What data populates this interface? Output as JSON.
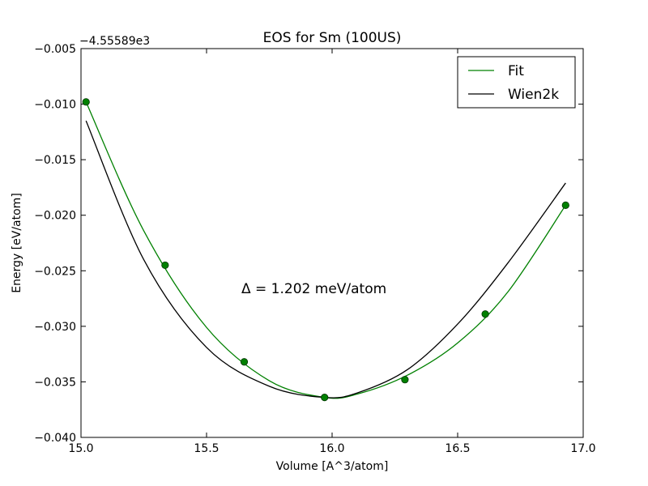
{
  "chart_data": {
    "type": "line",
    "title": "EOS for Sm (100US)",
    "xlabel": "Volume [A^3/atom]",
    "ylabel": "Energy [eV/atom]",
    "y_offset_label": "−4.55589e3",
    "annotation": "Δ = 1.202 meV/atom",
    "xlim": [
      15.0,
      17.0
    ],
    "ylim": [
      -0.04,
      -0.005
    ],
    "x_ticks": [
      15.0,
      15.5,
      16.0,
      16.5,
      17.0
    ],
    "x_tick_labels": [
      "15.0",
      "15.5",
      "16.0",
      "16.5",
      "17.0"
    ],
    "y_ticks": [
      -0.005,
      -0.01,
      -0.015,
      -0.02,
      -0.025,
      -0.03,
      -0.035,
      -0.04
    ],
    "y_tick_labels": [
      "−0.005",
      "−0.010",
      "−0.015",
      "−0.020",
      "−0.025",
      "−0.030",
      "−0.035",
      "−0.040"
    ],
    "legend_position": "top-right",
    "grid": false,
    "series": [
      {
        "name": "Fit",
        "color": "#008000",
        "x": [
          15.02,
          15.25,
          15.5,
          15.75,
          15.97,
          16.1,
          16.3,
          16.5,
          16.7,
          16.93
        ],
        "y": [
          -0.0098,
          -0.0214,
          -0.0301,
          -0.0349,
          -0.0364,
          -0.0361,
          -0.0344,
          -0.0315,
          -0.0269,
          -0.0191
        ]
      },
      {
        "name": "Wien2k",
        "color": "#000000",
        "x": [
          15.02,
          15.25,
          15.5,
          15.75,
          15.97,
          16.1,
          16.3,
          16.5,
          16.7,
          16.93
        ],
        "y": [
          -0.0115,
          -0.024,
          -0.0319,
          -0.0354,
          -0.0364,
          -0.036,
          -0.0339,
          -0.0298,
          -0.0243,
          -0.0171
        ]
      }
    ],
    "points": {
      "color": "#008000",
      "x": [
        15.02,
        15.335,
        15.65,
        15.97,
        16.29,
        16.61,
        16.93
      ],
      "y": [
        -0.0098,
        -0.0245,
        -0.0332,
        -0.0364,
        -0.0348,
        -0.0289,
        -0.0191
      ]
    }
  }
}
